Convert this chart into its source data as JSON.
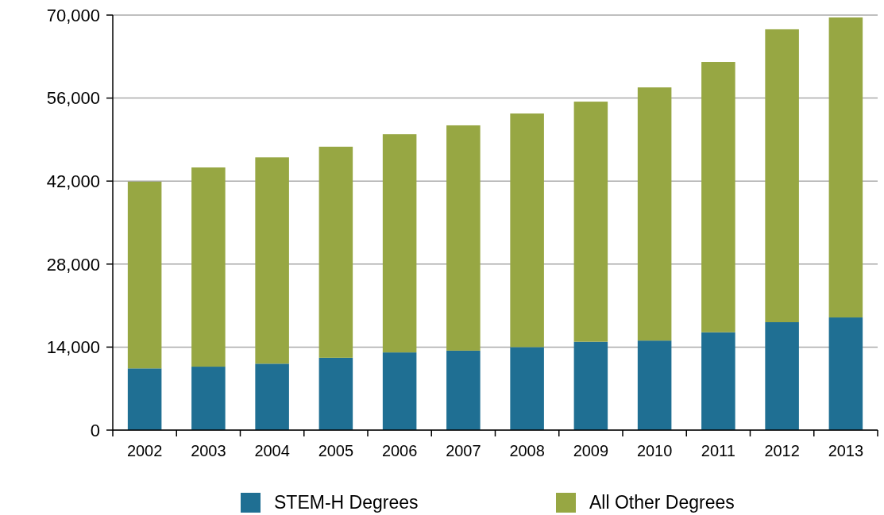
{
  "chart_data": {
    "type": "bar",
    "stacked": true,
    "categories": [
      "2002",
      "2003",
      "2004",
      "2005",
      "2006",
      "2007",
      "2008",
      "2009",
      "2010",
      "2011",
      "2012",
      "2013"
    ],
    "series": [
      {
        "name": "STEM-H Degrees",
        "color": "#1f6f93",
        "values": [
          10400,
          10700,
          11200,
          12200,
          13100,
          13400,
          14000,
          14900,
          15100,
          16500,
          18200,
          19000
        ]
      },
      {
        "name": "All Other Degrees",
        "color": "#97a743",
        "values": [
          31500,
          33600,
          34800,
          35600,
          36800,
          38000,
          39400,
          40500,
          42700,
          45600,
          49400,
          50600
        ]
      }
    ],
    "ylim": [
      0,
      70000
    ],
    "yticks": [
      {
        "value": 0,
        "label": "0"
      },
      {
        "value": 14000,
        "label": "14,000"
      },
      {
        "value": 28000,
        "label": "28,000"
      },
      {
        "value": 42000,
        "label": "42,000"
      },
      {
        "value": 56000,
        "label": "56,000"
      },
      {
        "value": 70000,
        "label": "70,000"
      }
    ],
    "grid": "y",
    "legend": "bottom"
  }
}
